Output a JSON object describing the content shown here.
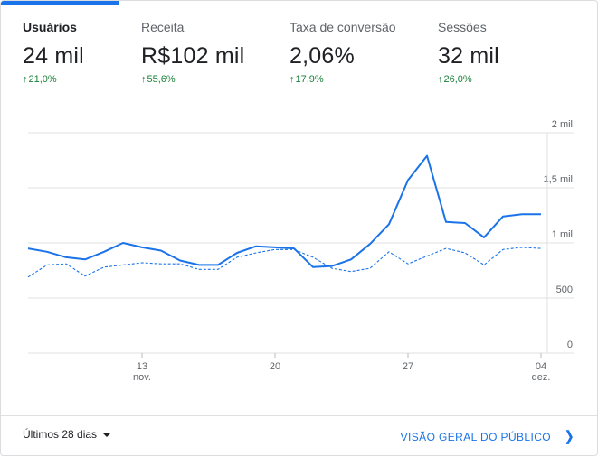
{
  "tabs": [
    {
      "label": "Usuários",
      "value": "24 mil",
      "delta": "21,0%",
      "active": true
    },
    {
      "label": "Receita",
      "value": "R$102 mil",
      "delta": "55,6%",
      "active": false
    },
    {
      "label": "Taxa de conversão",
      "value": "2,06%",
      "delta": "17,9%",
      "active": false
    },
    {
      "label": "Sessões",
      "value": "32 mil",
      "delta": "26,0%",
      "active": false
    }
  ],
  "colors": {
    "accent": "#1a73e8",
    "positive": "#188038",
    "grid": "#e0e0e0"
  },
  "footer": {
    "date_range": "Últimos 28 dias",
    "link": "VISÃO GERAL DO PÚBLICO"
  },
  "icons": {
    "delta": "arrow-up-icon",
    "range": "caret-down-icon",
    "link": "chevron-right-icon"
  },
  "chart_data": {
    "type": "line",
    "y_ticks": [
      "2 mil",
      "1,5 mil",
      "1 mil",
      "500",
      "0"
    ],
    "y_tick_values": [
      2000,
      1500,
      1000,
      500,
      0
    ],
    "ylim": [
      0,
      2000
    ],
    "grid": true,
    "x_tick_labels": [
      {
        "day": "13",
        "month": "nov.",
        "index": 6
      },
      {
        "day": "20",
        "month": "",
        "index": 13
      },
      {
        "day": "27",
        "month": "",
        "index": 20
      },
      {
        "day": "04",
        "month": "dez.",
        "index": 27
      }
    ],
    "series": [
      {
        "style": "solid",
        "values": [
          950,
          920,
          870,
          850,
          920,
          1000,
          960,
          930,
          840,
          800,
          800,
          910,
          970,
          960,
          950,
          780,
          790,
          850,
          990,
          1170,
          1570,
          1790,
          1190,
          1180,
          1050,
          1240,
          1260,
          1260
        ]
      },
      {
        "style": "dashed",
        "values": [
          690,
          800,
          810,
          700,
          780,
          800,
          820,
          810,
          810,
          760,
          760,
          870,
          910,
          940,
          940,
          870,
          770,
          740,
          770,
          920,
          810,
          880,
          950,
          910,
          800,
          940,
          960,
          950
        ]
      }
    ]
  }
}
